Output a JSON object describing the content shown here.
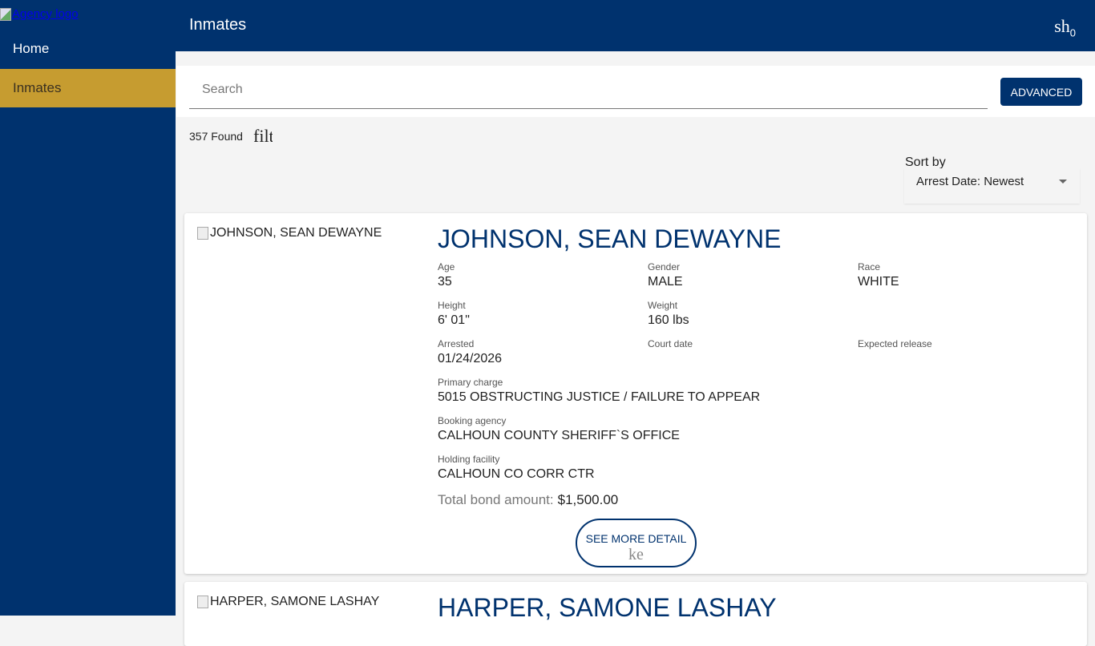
{
  "sidebar": {
    "logo_alt": "Agency logo",
    "items": [
      {
        "label": "Home"
      },
      {
        "label": "Inmates"
      }
    ]
  },
  "header": {
    "title": "Inmates",
    "icon_text": "sh",
    "badge": "0"
  },
  "search": {
    "placeholder": "Search",
    "advanced_label": "ADVANCED"
  },
  "results": {
    "found": "357 Found",
    "filter_icon_text": "filt"
  },
  "sort": {
    "label": "Sort by",
    "value": "Arrest Date: Newest"
  },
  "labels": {
    "age": "Age",
    "gender": "Gender",
    "race": "Race",
    "height": "Height",
    "weight": "Weight",
    "arrested": "Arrested",
    "court": "Court date",
    "release": "Expected release",
    "charge": "Primary charge",
    "agency": "Booking agency",
    "facility": "Holding facility",
    "bond": "Total bond amount:",
    "more": "SEE MORE DETAIL",
    "more_icon": "ke"
  },
  "inmates": [
    {
      "name": "JOHNSON, SEAN DEWAYNE",
      "age": "35",
      "gender": "MALE",
      "race": "WHITE",
      "height": "6' 01\"",
      "weight": "160 lbs",
      "arrested": "01/24/2026",
      "court": "",
      "release": "",
      "charge": "5015 OBSTRUCTING JUSTICE / FAILURE TO APPEAR",
      "agency": "CALHOUN COUNTY SHERIFF`S OFFICE",
      "facility": "CALHOUN CO CORR CTR",
      "bond": "$1,500.00"
    },
    {
      "name": "HARPER, SAMONE LASHAY"
    }
  ],
  "colors": {
    "navy": "#00326e",
    "gold": "#c69c30"
  }
}
